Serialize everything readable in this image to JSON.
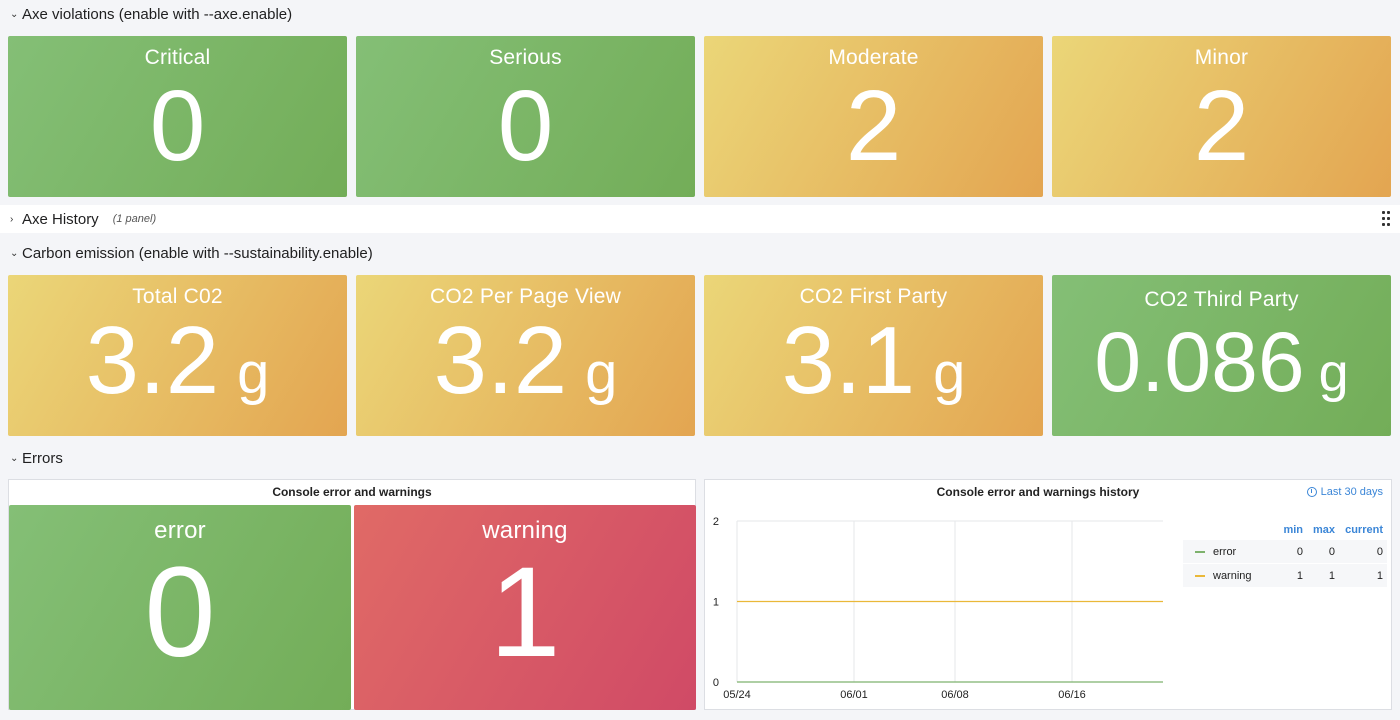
{
  "rows": {
    "axe": {
      "title": "Axe violations (enable with --axe.enable)"
    },
    "axe_history": {
      "title": "Axe History",
      "sub": "(1 panel)"
    },
    "carbon": {
      "title": "Carbon emission (enable with --sustainability.enable)"
    },
    "errors": {
      "title": "Errors"
    }
  },
  "axe_stats": [
    {
      "label": "Critical",
      "value": "0",
      "color": "#7cb66b"
    },
    {
      "label": "Serious",
      "value": "0",
      "color": "#7cb66b"
    },
    {
      "label": "Moderate",
      "value": "2",
      "color": "#e7bf63"
    },
    {
      "label": "Minor",
      "value": "2",
      "color": "#e7bf63"
    }
  ],
  "carbon_stats": [
    {
      "label": "Total C02",
      "value": "3.2",
      "unit": "g"
    },
    {
      "label": "CO2 Per Page View",
      "value": "3.2",
      "unit": "g"
    },
    {
      "label": "CO2 First Party",
      "value": "3.1",
      "unit": "g"
    },
    {
      "label": "CO2 Third Party",
      "value": "0.086",
      "unit": "g"
    }
  ],
  "console_panel": {
    "title": "Console error and warnings",
    "error": {
      "label": "error",
      "value": "0"
    },
    "warning": {
      "label": "warning",
      "value": "1"
    }
  },
  "history_panel": {
    "title": "Console error and warnings history",
    "time_range": "Last 30 days",
    "legend": {
      "headers": [
        "min",
        "max",
        "current"
      ],
      "items": [
        {
          "name": "error",
          "min": "0",
          "max": "0",
          "current": "0",
          "color": "#7eb26d"
        },
        {
          "name": "warning",
          "min": "1",
          "max": "1",
          "current": "1",
          "color": "#eab839"
        }
      ]
    }
  },
  "chart_data": {
    "type": "line",
    "x": [
      "05/24",
      "06/01",
      "06/08",
      "06/16"
    ],
    "y_ticks": [
      "0",
      "1",
      "2"
    ],
    "ylim": [
      0,
      2
    ],
    "series": [
      {
        "name": "error",
        "values": [
          0,
          0,
          0,
          0
        ],
        "color": "#7eb26d"
      },
      {
        "name": "warning",
        "values": [
          1,
          1,
          1,
          1
        ],
        "color": "#eab839"
      }
    ],
    "grid": true,
    "legend": "right"
  }
}
